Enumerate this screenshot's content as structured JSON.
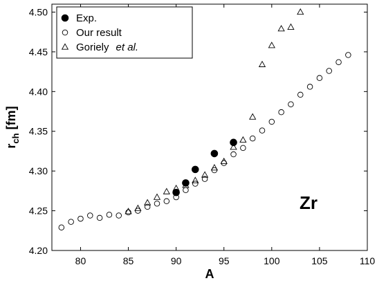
{
  "chart_data": {
    "type": "scatter",
    "xlabel": "A",
    "ylabel_main": "r",
    "ylabel_sub": "ch",
    "ylabel_unit": "[fm]",
    "xlim": [
      77,
      110
    ],
    "ylim": [
      4.2,
      4.51
    ],
    "x_ticks": [
      80,
      85,
      90,
      95,
      100,
      105,
      110
    ],
    "y_ticks": [
      4.2,
      4.25,
      4.3,
      4.35,
      4.4,
      4.45,
      4.5
    ],
    "legend_position": "top-left",
    "grid": false,
    "annotation": "Zr",
    "series": [
      {
        "name": "Exp.",
        "marker": "filled-circle",
        "points": [
          [
            90,
            4.273
          ],
          [
            91,
            4.285
          ],
          [
            92,
            4.302
          ],
          [
            94,
            4.322
          ],
          [
            96,
            4.336
          ]
        ]
      },
      {
        "name": "Our result",
        "marker": "open-circle",
        "points": [
          [
            78,
            4.229
          ],
          [
            79,
            4.236
          ],
          [
            80,
            4.24
          ],
          [
            81,
            4.244
          ],
          [
            82,
            4.241
          ],
          [
            83,
            4.245
          ],
          [
            84,
            4.244
          ],
          [
            85,
            4.248
          ],
          [
            86,
            4.25
          ],
          [
            87,
            4.255
          ],
          [
            88,
            4.259
          ],
          [
            89,
            4.262
          ],
          [
            90,
            4.267
          ],
          [
            91,
            4.276
          ],
          [
            92,
            4.284
          ],
          [
            93,
            4.29
          ],
          [
            94,
            4.301
          ],
          [
            95,
            4.31
          ],
          [
            96,
            4.321
          ],
          [
            97,
            4.329
          ],
          [
            98,
            4.341
          ],
          [
            99,
            4.351
          ],
          [
            100,
            4.362
          ],
          [
            101,
            4.374
          ],
          [
            102,
            4.384
          ],
          [
            103,
            4.396
          ],
          [
            104,
            4.406
          ],
          [
            105,
            4.417
          ],
          [
            106,
            4.426
          ],
          [
            107,
            4.437
          ],
          [
            108,
            4.446
          ]
        ]
      },
      {
        "name_main": "Goriely",
        "name_suffix": "et al.",
        "marker": "open-triangle",
        "points": [
          [
            85,
            4.249
          ],
          [
            86,
            4.253
          ],
          [
            87,
            4.26
          ],
          [
            88,
            4.267
          ],
          [
            89,
            4.274
          ],
          [
            90,
            4.278
          ],
          [
            91,
            4.282
          ],
          [
            92,
            4.288
          ],
          [
            93,
            4.295
          ],
          [
            94,
            4.304
          ],
          [
            95,
            4.312
          ],
          [
            96,
            4.33
          ],
          [
            97,
            4.339
          ],
          [
            98,
            4.368
          ],
          [
            99,
            4.434
          ],
          [
            100,
            4.458
          ],
          [
            101,
            4.479
          ],
          [
            102,
            4.481
          ],
          [
            103,
            4.5
          ]
        ]
      }
    ]
  }
}
